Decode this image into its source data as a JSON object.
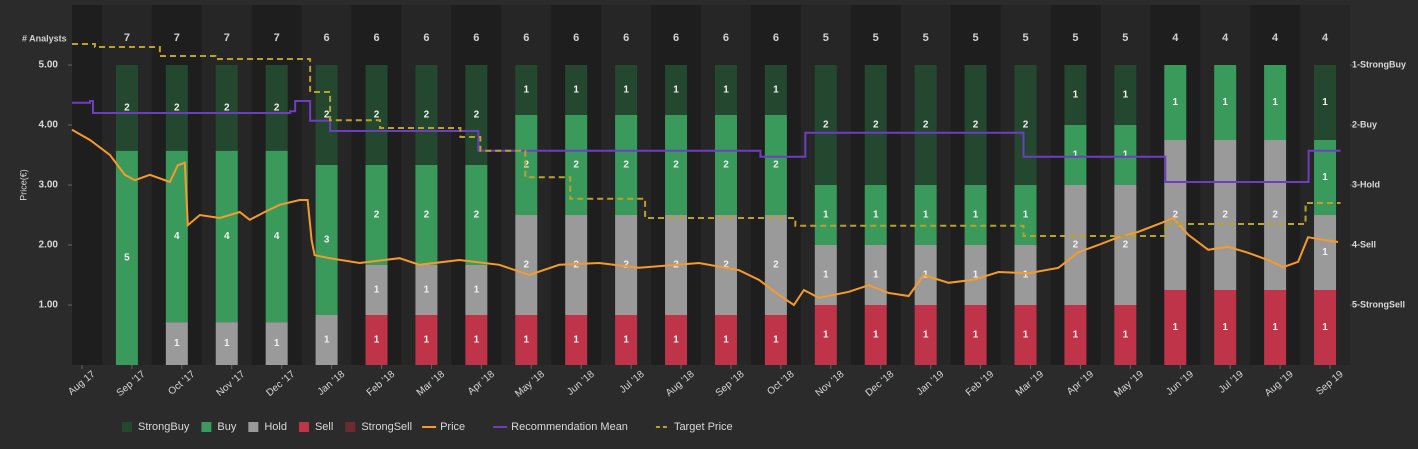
{
  "chart_data": {
    "type": "bar",
    "stacked": true,
    "y_label": "Price(€)",
    "analysts_label": "# Analysts",
    "analysts": [
      7,
      7,
      7,
      7,
      6,
      6,
      6,
      6,
      6,
      6,
      6,
      6,
      6,
      6,
      5,
      5,
      5,
      5,
      5,
      5,
      5,
      4,
      4,
      4,
      4
    ],
    "xlim": [
      -0.2,
      25.4
    ],
    "xticks": [
      {
        "value": 0,
        "label": "Aug 17"
      },
      {
        "value": 1,
        "label": "Sep '17"
      },
      {
        "value": 2,
        "label": "Oct '17"
      },
      {
        "value": 3,
        "label": "Nov '17"
      },
      {
        "value": 4,
        "label": "Dec '17"
      },
      {
        "value": 5,
        "label": "Jan '18"
      },
      {
        "value": 6,
        "label": "Feb '18"
      },
      {
        "value": 7,
        "label": "Mar '18"
      },
      {
        "value": 8,
        "label": "Apr '18"
      },
      {
        "value": 9,
        "label": "May '18"
      },
      {
        "value": 10,
        "label": "Jun '18"
      },
      {
        "value": 11,
        "label": "Jul '18"
      },
      {
        "value": 12,
        "label": "Aug '18"
      },
      {
        "value": 13,
        "label": "Sep '18"
      },
      {
        "value": 14,
        "label": "Oct '18"
      },
      {
        "value": 15,
        "label": "Nov '18"
      },
      {
        "value": 16,
        "label": "Dec '18"
      },
      {
        "value": 17,
        "label": "Jan '19"
      },
      {
        "value": 18,
        "label": "Feb '19"
      },
      {
        "value": 19,
        "label": "Mar '19"
      },
      {
        "value": 20,
        "label": "Apr '19"
      },
      {
        "value": 21,
        "label": "May '19"
      },
      {
        "value": 22,
        "label": "Jun '19"
      },
      {
        "value": 23,
        "label": "Jul '19"
      },
      {
        "value": 24,
        "label": "Aug '19"
      },
      {
        "value": 25,
        "label": "Sep 19"
      }
    ],
    "ylim": [
      0,
      6
    ],
    "yticks": [
      {
        "value": 1,
        "label": "1.00"
      },
      {
        "value": 2,
        "label": "2.00"
      },
      {
        "value": 3,
        "label": "3.00"
      },
      {
        "value": 4,
        "label": "4.00"
      },
      {
        "value": 5,
        "label": "5.00"
      }
    ],
    "y2lim": [
      6,
      0
    ],
    "y2ticks": [
      {
        "value": 1,
        "label": "1-StrongBuy"
      },
      {
        "value": 2,
        "label": "2-Buy"
      },
      {
        "value": 3,
        "label": "3-Hold"
      },
      {
        "value": 4,
        "label": "4-Sell"
      },
      {
        "value": 5,
        "label": "5-StrongSell"
      }
    ],
    "series": [
      {
        "name": "StrongBuy",
        "color": "#24472f",
        "kind": "bar",
        "values": [
          2,
          2,
          2,
          2,
          2,
          2,
          2,
          2,
          1,
          1,
          1,
          1,
          1,
          1,
          2,
          2,
          2,
          2,
          2,
          1,
          1,
          0,
          0,
          0,
          1
        ]
      },
      {
        "name": "Buy",
        "color": "#3a9a5b",
        "kind": "bar",
        "values": [
          5,
          4,
          4,
          4,
          3,
          2,
          2,
          2,
          2,
          2,
          2,
          2,
          2,
          2,
          1,
          1,
          1,
          1,
          1,
          1,
          1,
          1,
          1,
          1,
          1
        ]
      },
      {
        "name": "Hold",
        "color": "#9a9a9a",
        "kind": "bar",
        "values": [
          0,
          1,
          1,
          1,
          1,
          1,
          1,
          1,
          2,
          2,
          2,
          2,
          2,
          2,
          1,
          1,
          1,
          1,
          1,
          2,
          2,
          2,
          2,
          2,
          1
        ]
      },
      {
        "name": "Sell",
        "color": "#c0344a",
        "kind": "bar",
        "values": [
          0,
          0,
          0,
          0,
          0,
          1,
          1,
          1,
          1,
          1,
          1,
          1,
          1,
          1,
          1,
          1,
          1,
          1,
          1,
          1,
          1,
          1,
          1,
          1,
          1
        ]
      },
      {
        "name": "StrongSell",
        "color": "#6e2a33",
        "kind": "bar",
        "values": [
          0,
          0,
          0,
          0,
          0,
          0,
          0,
          0,
          0,
          0,
          0,
          0,
          0,
          0,
          0,
          0,
          0,
          0,
          0,
          0,
          0,
          0,
          0,
          0,
          0
        ]
      },
      {
        "name": "Price",
        "color": "#f59a2d",
        "kind": "line",
        "x": [
          -0.2,
          0.16,
          0.56,
          0.86,
          1.06,
          1.36,
          1.76,
          1.92,
          2.06,
          2.12,
          2.36,
          2.76,
          3.16,
          3.36,
          3.66,
          3.96,
          4.36,
          4.52,
          4.6,
          4.66,
          4.96,
          5.56,
          6.36,
          6.76,
          7.56,
          8.36,
          8.96,
          9.56,
          10.36,
          11.16,
          12.36,
          13.16,
          13.56,
          13.96,
          14.26,
          14.46,
          14.76,
          15.36,
          15.76,
          16.16,
          16.56,
          16.86,
          17.36,
          17.86,
          18.36,
          18.96,
          19.56,
          19.96,
          20.36,
          20.76,
          21.16,
          21.66,
          21.86,
          22.16,
          22.56,
          22.96,
          23.36,
          23.76,
          24.06,
          24.36,
          24.56,
          24.76,
          25.16
        ],
        "values": [
          3.92,
          3.75,
          3.5,
          3.17,
          3.08,
          3.17,
          3.05,
          3.33,
          3.37,
          2.33,
          2.5,
          2.45,
          2.55,
          2.42,
          2.55,
          2.67,
          2.75,
          2.75,
          2.08,
          1.83,
          1.78,
          1.7,
          1.78,
          1.67,
          1.75,
          1.67,
          1.5,
          1.67,
          1.7,
          1.62,
          1.7,
          1.58,
          1.42,
          1.17,
          1.0,
          1.25,
          1.12,
          1.22,
          1.33,
          1.2,
          1.15,
          1.5,
          1.37,
          1.42,
          1.55,
          1.53,
          1.62,
          1.88,
          2.0,
          2.13,
          2.22,
          2.38,
          2.45,
          2.17,
          1.92,
          1.97,
          1.87,
          1.75,
          1.63,
          1.72,
          2.13,
          2.1,
          2.05
        ]
      },
      {
        "name": "Recommendation Mean",
        "color": "#6d3fc0",
        "kind": "line",
        "axis": "y2",
        "step": true,
        "x": [
          -0.2,
          0.16,
          0.22,
          4.17,
          4.27,
          4.57,
          4.97,
          7.94,
          13.59,
          14.49,
          18.86,
          21.7,
          24.57,
          25.21
        ],
        "values": [
          1.63,
          1.6,
          1.8,
          1.77,
          1.6,
          1.93,
          2.1,
          2.43,
          2.53,
          2.13,
          2.53,
          2.95,
          2.43,
          2.43
        ]
      },
      {
        "name": "Target Price",
        "color": "#b9a22c",
        "kind": "line",
        "dashed": true,
        "step": true,
        "x": [
          -0.2,
          0.26,
          1.56,
          2.67,
          4.57,
          4.97,
          5.97,
          7.58,
          7.98,
          8.88,
          9.78,
          11.28,
          14.29,
          18.86,
          21.7,
          24.51,
          25.21
        ],
        "values": [
          5.35,
          5.3,
          5.15,
          5.1,
          4.55,
          4.08,
          3.95,
          3.8,
          3.57,
          3.13,
          2.77,
          2.45,
          2.32,
          2.15,
          2.35,
          2.7,
          2.7
        ]
      }
    ]
  }
}
